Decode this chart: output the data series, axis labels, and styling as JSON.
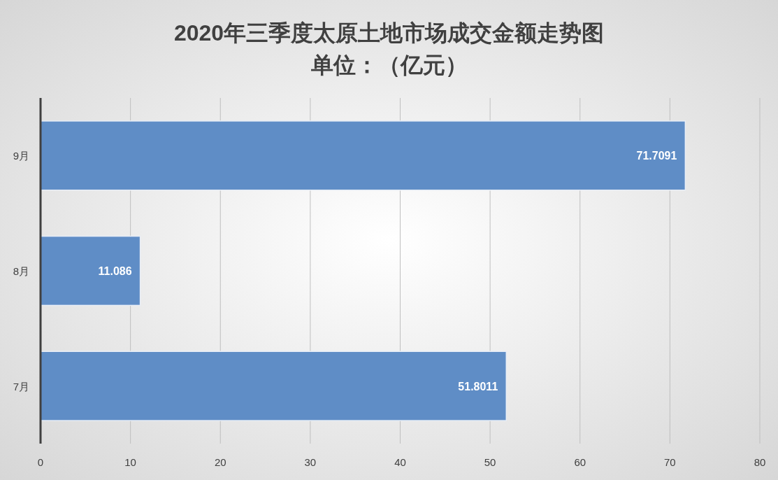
{
  "chart_data": {
    "type": "bar",
    "orientation": "horizontal",
    "title": "2020年三季度太原土地市场成交金额走势图",
    "subtitle": "单位：（亿元）",
    "categories": [
      "9月",
      "8月",
      "7月"
    ],
    "values": [
      71.7091,
      11.086,
      51.8011
    ],
    "color": "#5f8dc6",
    "xlim": [
      0,
      80
    ],
    "xticks": [
      0,
      10,
      20,
      30,
      40,
      50,
      60,
      70,
      80
    ],
    "grid": "x",
    "data_labels": true
  }
}
